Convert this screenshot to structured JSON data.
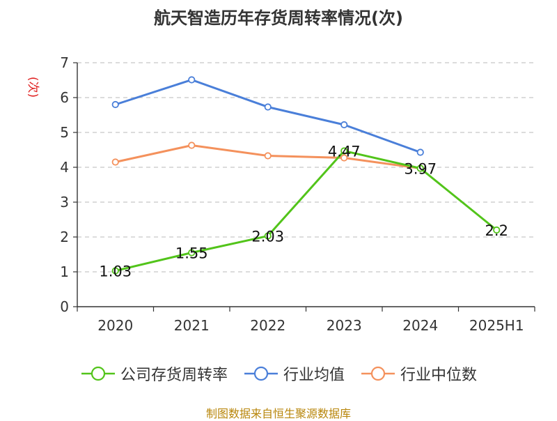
{
  "title": "航天智造历年存货周转率情况(次)",
  "source": "制图数据来自恒生聚源数据库",
  "source_color": "#b8860b",
  "chart_data": {
    "type": "line",
    "title": "航天智造历年存货周转率情况(次)",
    "ylabel": "(次)",
    "ylabel_color": "#e02020",
    "categories": [
      "2020",
      "2021",
      "2022",
      "2023",
      "2024",
      "2025H1"
    ],
    "ylim": [
      0,
      7
    ],
    "yticks": [
      0,
      1,
      2,
      3,
      4,
      5,
      6,
      7
    ],
    "grid": true,
    "legend_position": "bottom",
    "series": [
      {
        "name": "公司存货周转率",
        "color": "#52c41a",
        "values": [
          1.03,
          1.55,
          2.03,
          4.47,
          3.97,
          2.2
        ],
        "labels": [
          "1.03",
          "1.55",
          "2.03",
          "4.47",
          "3.97",
          "2.2"
        ]
      },
      {
        "name": "行业均值",
        "color": "#4a7fd9",
        "values": [
          5.8,
          6.51,
          5.73,
          5.22,
          4.43,
          null
        ]
      },
      {
        "name": "行业中位数",
        "color": "#f4915c",
        "values": [
          4.15,
          4.63,
          4.33,
          4.27,
          3.97,
          null
        ]
      }
    ]
  }
}
